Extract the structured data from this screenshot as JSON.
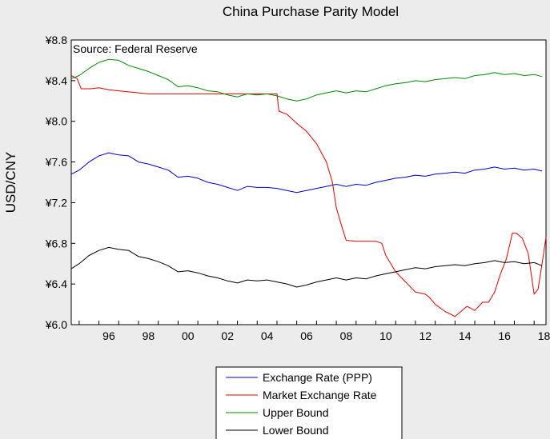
{
  "chart_data": {
    "type": "line",
    "title": "China Purchase Parity Model",
    "ylabel": "USD/CNY",
    "xlabel": "",
    "annotation": "Source: Federal Reserve",
    "x_range": [
      1994.6,
      2018.6
    ],
    "ylim": [
      6.0,
      8.8
    ],
    "y_ticks": [
      {
        "value": 6.0,
        "label": "¥6.0"
      },
      {
        "value": 6.4,
        "label": "¥6.4"
      },
      {
        "value": 6.8,
        "label": "¥6.8"
      },
      {
        "value": 7.2,
        "label": "¥7.2"
      },
      {
        "value": 7.6,
        "label": "¥7.6"
      },
      {
        "value": 8.0,
        "label": "¥8.0"
      },
      {
        "value": 8.4,
        "label": "¥8.4"
      },
      {
        "value": 8.8,
        "label": "¥8.8"
      }
    ],
    "x_ticks": [
      {
        "value": 1996,
        "label": "96"
      },
      {
        "value": 1998,
        "label": "98"
      },
      {
        "value": 2000,
        "label": "00"
      },
      {
        "value": 2002,
        "label": "02"
      },
      {
        "value": 2004,
        "label": "04"
      },
      {
        "value": 2006,
        "label": "06"
      },
      {
        "value": 2008,
        "label": "08"
      },
      {
        "value": 2010,
        "label": "10"
      },
      {
        "value": 2012,
        "label": "12"
      },
      {
        "value": 2014,
        "label": "14"
      },
      {
        "value": 2016,
        "label": "16"
      },
      {
        "value": 2018,
        "label": "18"
      }
    ],
    "grid": false,
    "legend_position": "bottom-center",
    "series": [
      {
        "name": "Exchange Rate (PPP)",
        "color": "#0000cc",
        "points": [
          [
            1994.6,
            7.48
          ],
          [
            1995.0,
            7.52
          ],
          [
            1995.5,
            7.6
          ],
          [
            1996.0,
            7.66
          ],
          [
            1996.5,
            7.69
          ],
          [
            1997.0,
            7.67
          ],
          [
            1997.5,
            7.66
          ],
          [
            1998.0,
            7.6
          ],
          [
            1998.5,
            7.58
          ],
          [
            1999.0,
            7.55
          ],
          [
            1999.5,
            7.52
          ],
          [
            2000.0,
            7.45
          ],
          [
            2000.5,
            7.46
          ],
          [
            2001.0,
            7.44
          ],
          [
            2001.5,
            7.4
          ],
          [
            2002.0,
            7.38
          ],
          [
            2002.5,
            7.35
          ],
          [
            2003.0,
            7.32
          ],
          [
            2003.5,
            7.36
          ],
          [
            2004.0,
            7.35
          ],
          [
            2004.5,
            7.35
          ],
          [
            2005.0,
            7.34
          ],
          [
            2005.5,
            7.32
          ],
          [
            2006.0,
            7.3
          ],
          [
            2006.5,
            7.32
          ],
          [
            2007.0,
            7.34
          ],
          [
            2007.5,
            7.36
          ],
          [
            2008.0,
            7.38
          ],
          [
            2008.5,
            7.36
          ],
          [
            2009.0,
            7.38
          ],
          [
            2009.5,
            7.37
          ],
          [
            2010.0,
            7.4
          ],
          [
            2010.5,
            7.42
          ],
          [
            2011.0,
            7.44
          ],
          [
            2011.5,
            7.45
          ],
          [
            2012.0,
            7.47
          ],
          [
            2012.5,
            7.46
          ],
          [
            2013.0,
            7.48
          ],
          [
            2013.5,
            7.49
          ],
          [
            2014.0,
            7.5
          ],
          [
            2014.5,
            7.49
          ],
          [
            2015.0,
            7.52
          ],
          [
            2015.5,
            7.53
          ],
          [
            2016.0,
            7.55
          ],
          [
            2016.5,
            7.53
          ],
          [
            2017.0,
            7.54
          ],
          [
            2017.5,
            7.52
          ],
          [
            2018.0,
            7.53
          ],
          [
            2018.4,
            7.51
          ]
        ]
      },
      {
        "name": "Market Exchange Rate",
        "color": "#dd0000",
        "points": [
          [
            1994.6,
            8.45
          ],
          [
            1994.9,
            8.42
          ],
          [
            1995.1,
            8.32
          ],
          [
            1995.6,
            8.32
          ],
          [
            1996.0,
            8.33
          ],
          [
            1996.5,
            8.31
          ],
          [
            1997.0,
            8.3
          ],
          [
            1998.0,
            8.28
          ],
          [
            1998.5,
            8.27
          ],
          [
            2000.0,
            8.27
          ],
          [
            2002.0,
            8.27
          ],
          [
            2004.0,
            8.27
          ],
          [
            2005.0,
            8.27
          ],
          [
            2005.1,
            8.1
          ],
          [
            2005.5,
            8.07
          ],
          [
            2006.0,
            7.98
          ],
          [
            2006.5,
            7.9
          ],
          [
            2007.0,
            7.78
          ],
          [
            2007.5,
            7.6
          ],
          [
            2007.8,
            7.4
          ],
          [
            2008.0,
            7.15
          ],
          [
            2008.3,
            6.95
          ],
          [
            2008.5,
            6.83
          ],
          [
            2009.0,
            6.82
          ],
          [
            2010.0,
            6.82
          ],
          [
            2010.3,
            6.8
          ],
          [
            2010.5,
            6.68
          ],
          [
            2011.0,
            6.52
          ],
          [
            2011.5,
            6.42
          ],
          [
            2012.0,
            6.32
          ],
          [
            2012.5,
            6.3
          ],
          [
            2012.7,
            6.27
          ],
          [
            2013.0,
            6.2
          ],
          [
            2013.5,
            6.13
          ],
          [
            2014.0,
            6.08
          ],
          [
            2014.3,
            6.13
          ],
          [
            2014.6,
            6.18
          ],
          [
            2015.0,
            6.14
          ],
          [
            2015.4,
            6.22
          ],
          [
            2015.7,
            6.22
          ],
          [
            2016.0,
            6.32
          ],
          [
            2016.3,
            6.5
          ],
          [
            2016.6,
            6.65
          ],
          [
            2016.9,
            6.9
          ],
          [
            2017.1,
            6.9
          ],
          [
            2017.4,
            6.85
          ],
          [
            2017.7,
            6.7
          ],
          [
            2018.0,
            6.3
          ],
          [
            2018.2,
            6.35
          ],
          [
            2018.4,
            6.6
          ],
          [
            2018.6,
            6.86
          ]
        ]
      },
      {
        "name": "Upper Bound",
        "color": "#008800",
        "points": [
          [
            1994.6,
            8.42
          ],
          [
            1995.0,
            8.45
          ],
          [
            1995.5,
            8.52
          ],
          [
            1996.0,
            8.58
          ],
          [
            1996.5,
            8.61
          ],
          [
            1997.0,
            8.6
          ],
          [
            1997.5,
            8.55
          ],
          [
            1998.0,
            8.52
          ],
          [
            1998.5,
            8.49
          ],
          [
            1999.0,
            8.45
          ],
          [
            1999.5,
            8.41
          ],
          [
            2000.0,
            8.34
          ],
          [
            2000.5,
            8.35
          ],
          [
            2001.0,
            8.33
          ],
          [
            2001.5,
            8.3
          ],
          [
            2002.0,
            8.29
          ],
          [
            2002.5,
            8.26
          ],
          [
            2003.0,
            8.24
          ],
          [
            2003.5,
            8.27
          ],
          [
            2004.0,
            8.26
          ],
          [
            2004.5,
            8.27
          ],
          [
            2005.0,
            8.25
          ],
          [
            2005.5,
            8.22
          ],
          [
            2006.0,
            8.2
          ],
          [
            2006.5,
            8.22
          ],
          [
            2007.0,
            8.26
          ],
          [
            2007.5,
            8.28
          ],
          [
            2008.0,
            8.3
          ],
          [
            2008.5,
            8.28
          ],
          [
            2009.0,
            8.3
          ],
          [
            2009.5,
            8.29
          ],
          [
            2010.0,
            8.32
          ],
          [
            2010.5,
            8.35
          ],
          [
            2011.0,
            8.37
          ],
          [
            2011.5,
            8.38
          ],
          [
            2012.0,
            8.4
          ],
          [
            2012.5,
            8.39
          ],
          [
            2013.0,
            8.41
          ],
          [
            2013.5,
            8.42
          ],
          [
            2014.0,
            8.43
          ],
          [
            2014.5,
            8.42
          ],
          [
            2015.0,
            8.45
          ],
          [
            2015.5,
            8.46
          ],
          [
            2016.0,
            8.48
          ],
          [
            2016.5,
            8.46
          ],
          [
            2017.0,
            8.47
          ],
          [
            2017.5,
            8.45
          ],
          [
            2018.0,
            8.46
          ],
          [
            2018.4,
            8.44
          ]
        ]
      },
      {
        "name": "Lower Bound",
        "color": "#000000",
        "points": [
          [
            1994.6,
            6.55
          ],
          [
            1995.0,
            6.6
          ],
          [
            1995.5,
            6.68
          ],
          [
            1996.0,
            6.73
          ],
          [
            1996.5,
            6.76
          ],
          [
            1997.0,
            6.74
          ],
          [
            1997.5,
            6.73
          ],
          [
            1998.0,
            6.67
          ],
          [
            1998.5,
            6.65
          ],
          [
            1999.0,
            6.62
          ],
          [
            1999.5,
            6.58
          ],
          [
            2000.0,
            6.52
          ],
          [
            2000.5,
            6.53
          ],
          [
            2001.0,
            6.51
          ],
          [
            2001.5,
            6.48
          ],
          [
            2002.0,
            6.46
          ],
          [
            2002.5,
            6.43
          ],
          [
            2003.0,
            6.41
          ],
          [
            2003.5,
            6.44
          ],
          [
            2004.0,
            6.43
          ],
          [
            2004.5,
            6.44
          ],
          [
            2005.0,
            6.42
          ],
          [
            2005.5,
            6.4
          ],
          [
            2006.0,
            6.37
          ],
          [
            2006.5,
            6.39
          ],
          [
            2007.0,
            6.42
          ],
          [
            2007.5,
            6.44
          ],
          [
            2008.0,
            6.46
          ],
          [
            2008.5,
            6.44
          ],
          [
            2009.0,
            6.46
          ],
          [
            2009.5,
            6.45
          ],
          [
            2010.0,
            6.48
          ],
          [
            2010.5,
            6.5
          ],
          [
            2011.0,
            6.52
          ],
          [
            2011.5,
            6.54
          ],
          [
            2012.0,
            6.56
          ],
          [
            2012.5,
            6.55
          ],
          [
            2013.0,
            6.57
          ],
          [
            2013.5,
            6.58
          ],
          [
            2014.0,
            6.59
          ],
          [
            2014.5,
            6.58
          ],
          [
            2015.0,
            6.6
          ],
          [
            2015.5,
            6.61
          ],
          [
            2016.0,
            6.63
          ],
          [
            2016.5,
            6.61
          ],
          [
            2017.0,
            6.62
          ],
          [
            2017.5,
            6.6
          ],
          [
            2018.0,
            6.61
          ],
          [
            2018.4,
            6.58
          ]
        ]
      }
    ]
  }
}
